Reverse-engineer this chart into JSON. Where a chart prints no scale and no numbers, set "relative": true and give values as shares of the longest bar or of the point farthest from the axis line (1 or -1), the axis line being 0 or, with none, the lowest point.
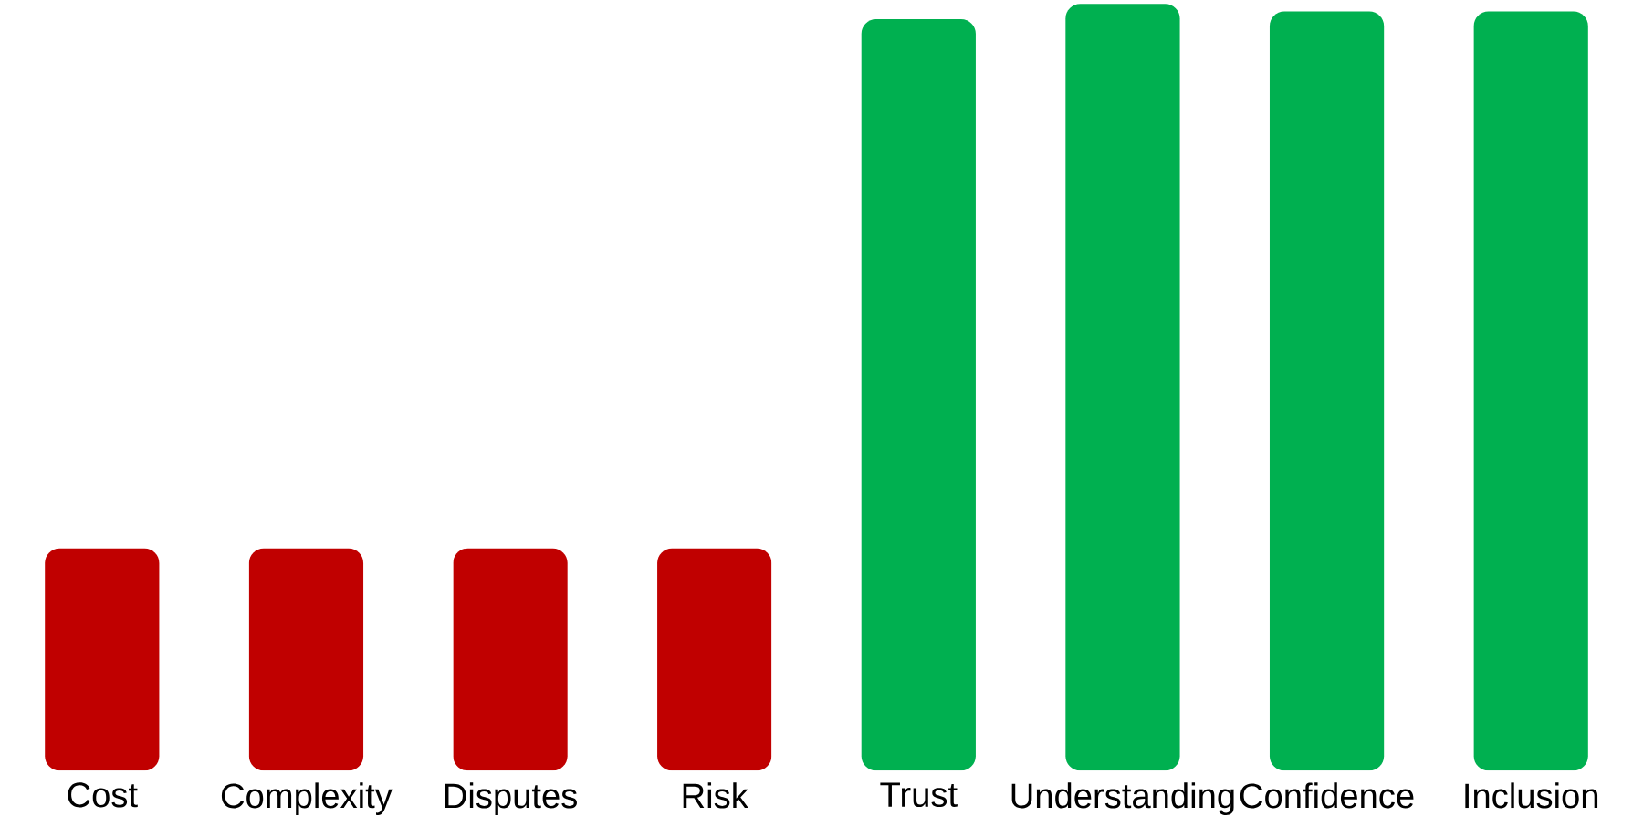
{
  "chart_data": {
    "type": "bar",
    "relative": true,
    "categories": [
      "Cost",
      "Complexity",
      "Disputes",
      "Risk",
      "Trust",
      "Understanding",
      "Confidence",
      "Inclusion"
    ],
    "values": [
      0.29,
      0.29,
      0.29,
      0.29,
      0.98,
      1,
      0.99,
      0.99
    ],
    "colors": [
      "#c00000",
      "#c00000",
      "#c00000",
      "#c00000",
      "#00b050",
      "#00b050",
      "#00b050",
      "#00b050"
    ]
  }
}
